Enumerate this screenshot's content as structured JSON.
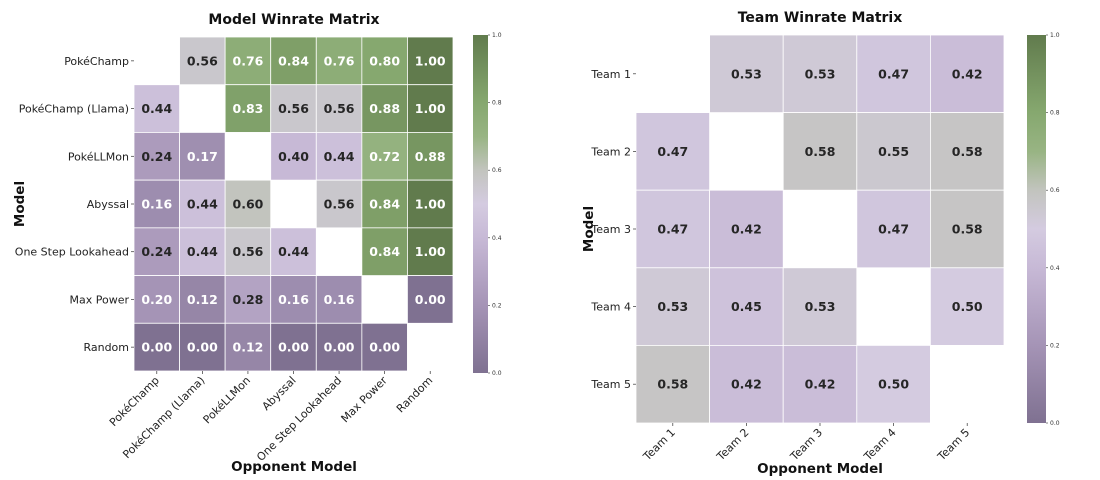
{
  "chart_data": [
    {
      "type": "heatmap",
      "title": "Model Winrate Matrix",
      "xlabel": "Opponent Model",
      "ylabel": "Model",
      "x_categories": [
        "PokéChamp",
        "PokéChamp (Llama)",
        "PokéLLMon",
        "Abyssal",
        "One Step Lookahead",
        "Max Power",
        "Random"
      ],
      "y_categories": [
        "PokéChamp",
        "PokéChamp (Llama)",
        "PokéLLMon",
        "Abyssal",
        "One Step Lookahead",
        "Max Power",
        "Random"
      ],
      "values": [
        [
          null,
          0.56,
          0.76,
          0.84,
          0.76,
          0.8,
          1.0
        ],
        [
          0.44,
          null,
          0.83,
          0.56,
          0.56,
          0.88,
          1.0
        ],
        [
          0.24,
          0.17,
          null,
          0.4,
          0.44,
          0.72,
          0.88
        ],
        [
          0.16,
          0.44,
          0.6,
          null,
          0.56,
          0.84,
          1.0
        ],
        [
          0.24,
          0.44,
          0.56,
          0.44,
          null,
          0.84,
          1.0
        ],
        [
          0.2,
          0.12,
          0.28,
          0.16,
          0.16,
          null,
          0.0
        ],
        [
          0.0,
          0.0,
          0.12,
          0.0,
          0.0,
          0.0,
          null
        ]
      ],
      "colorbar": {
        "range": [
          0,
          1
        ],
        "ticks": [
          "0.0",
          "0.2",
          "0.4",
          "0.6",
          "0.8",
          "1.0"
        ]
      }
    },
    {
      "type": "heatmap",
      "title": "Team Winrate Matrix",
      "xlabel": "Opponent Model",
      "ylabel": "Model",
      "x_categories": [
        "Team 1",
        "Team 2",
        "Team 3",
        "Team 4",
        "Team 5"
      ],
      "y_categories": [
        "Team 1",
        "Team 2",
        "Team 3",
        "Team 4",
        "Team 5"
      ],
      "values": [
        [
          null,
          0.53,
          0.53,
          0.47,
          0.42
        ],
        [
          0.47,
          null,
          0.58,
          0.55,
          0.58
        ],
        [
          0.47,
          0.42,
          null,
          0.47,
          0.58
        ],
        [
          0.53,
          0.45,
          0.53,
          null,
          0.5
        ],
        [
          0.58,
          0.42,
          0.42,
          0.5,
          null
        ]
      ],
      "colorbar": {
        "range": [
          0,
          1
        ],
        "ticks": [
          "0.0",
          "0.2",
          "0.4",
          "0.6",
          "0.8",
          "1.0"
        ]
      }
    }
  ],
  "colormap": {
    "low": "#7f7191",
    "mid_low": "#c7b9d6",
    "mid": "#d4cbe0",
    "mid_high": "#c2c4be",
    "high": "#617b4d"
  }
}
